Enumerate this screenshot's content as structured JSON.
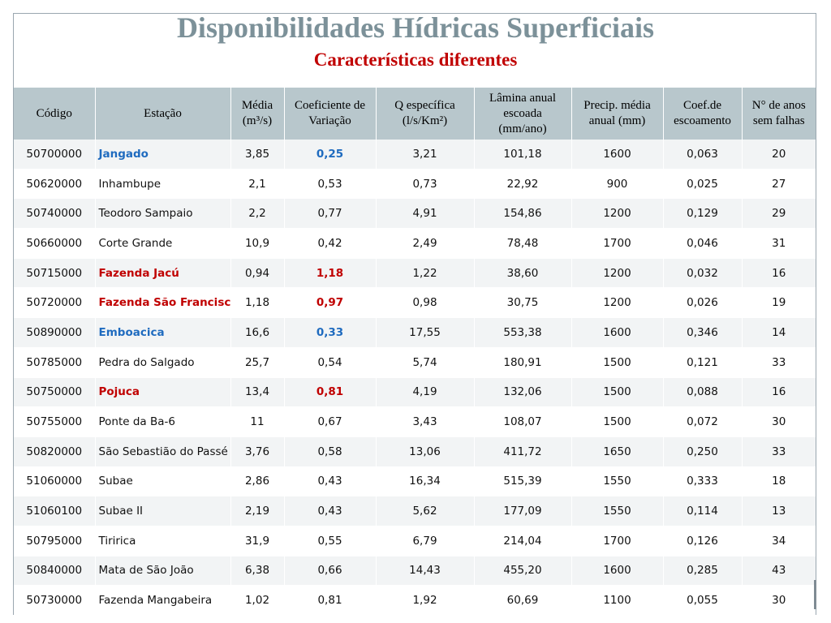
{
  "title": "Disponibilidades Hídricas Superficiais",
  "subtitle": "Características diferentes",
  "colors": {
    "title": "#7c9199",
    "subtitle": "#c00000",
    "header_bg": "#b8c7cc",
    "highlight_blue": "#1f6bbf",
    "highlight_red": "#c00000"
  },
  "headers": {
    "codigo": "Código",
    "estacao": "Estação",
    "media_l1": "Média",
    "media_l2": "(m³/s)",
    "coef_l1": "Coeficiente de",
    "coef_l2": "Variação",
    "q_l1": "Q específica",
    "q_l2": "(l/s/Km²)",
    "lamina_l1": "Lâmina anual",
    "lamina_l2": "escoada",
    "lamina_l3": "(mm/ano)",
    "precip_l1": "Precip. média",
    "precip_l2": "anual (mm)",
    "coefesc_l1": "Coef.de",
    "coefesc_l2": "escoamento",
    "anos_l1": "N° de anos",
    "anos_l2": "sem falhas"
  },
  "rows": [
    {
      "codigo": "50700000",
      "estacao": "Jangado",
      "media": "3,85",
      "cv": "0,25",
      "q": "3,21",
      "lamina": "101,18",
      "precip": "1600",
      "coef": "0,063",
      "anos": "20",
      "highlight": "blue"
    },
    {
      "codigo": "50620000",
      "estacao": "Inhambupe",
      "media": "2,1",
      "cv": "0,53",
      "q": "0,73",
      "lamina": "22,92",
      "precip": "900",
      "coef": "0,025",
      "anos": "27",
      "highlight": ""
    },
    {
      "codigo": "50740000",
      "estacao": "Teodoro Sampaio",
      "media": "2,2",
      "cv": "0,77",
      "q": "4,91",
      "lamina": "154,86",
      "precip": "1200",
      "coef": "0,129",
      "anos": "29",
      "highlight": ""
    },
    {
      "codigo": "50660000",
      "estacao": "Corte Grande",
      "media": "10,9",
      "cv": "0,42",
      "q": "2,49",
      "lamina": "78,48",
      "precip": "1700",
      "coef": "0,046",
      "anos": "31",
      "highlight": ""
    },
    {
      "codigo": "50715000",
      "estacao": "Fazenda Jacú",
      "media": "0,94",
      "cv": "1,18",
      "q": "1,22",
      "lamina": "38,60",
      "precip": "1200",
      "coef": "0,032",
      "anos": "16",
      "highlight": "red"
    },
    {
      "codigo": "50720000",
      "estacao": "Fazenda São Francisco",
      "media": "1,18",
      "cv": "0,97",
      "q": "0,98",
      "lamina": "30,75",
      "precip": "1200",
      "coef": "0,026",
      "anos": "19",
      "highlight": "red"
    },
    {
      "codigo": "50890000",
      "estacao": "Emboacica",
      "media": "16,6",
      "cv": "0,33",
      "q": "17,55",
      "lamina": "553,38",
      "precip": "1600",
      "coef": "0,346",
      "anos": "14",
      "highlight": "blue"
    },
    {
      "codigo": "50785000",
      "estacao": "Pedra do Salgado",
      "media": "25,7",
      "cv": "0,54",
      "q": "5,74",
      "lamina": "180,91",
      "precip": "1500",
      "coef": "0,121",
      "anos": "33",
      "highlight": ""
    },
    {
      "codigo": "50750000",
      "estacao": "Pojuca",
      "media": "13,4",
      "cv": "0,81",
      "q": "4,19",
      "lamina": "132,06",
      "precip": "1500",
      "coef": "0,088",
      "anos": "16",
      "highlight": "red"
    },
    {
      "codigo": "50755000",
      "estacao": "Ponte da Ba-6",
      "media": "11",
      "cv": "0,67",
      "q": "3,43",
      "lamina": "108,07",
      "precip": "1500",
      "coef": "0,072",
      "anos": "30",
      "highlight": ""
    },
    {
      "codigo": "50820000",
      "estacao": "São Sebastião do Passé",
      "media": "3,76",
      "cv": "0,58",
      "q": "13,06",
      "lamina": "411,72",
      "precip": "1650",
      "coef": "0,250",
      "anos": "33",
      "highlight": ""
    },
    {
      "codigo": "51060000",
      "estacao": "Subae",
      "media": "2,86",
      "cv": "0,43",
      "q": "16,34",
      "lamina": "515,39",
      "precip": "1550",
      "coef": "0,333",
      "anos": "18",
      "highlight": ""
    },
    {
      "codigo": "51060100",
      "estacao": "Subae II",
      "media": "2,19",
      "cv": "0,43",
      "q": "5,62",
      "lamina": "177,09",
      "precip": "1550",
      "coef": "0,114",
      "anos": "13",
      "highlight": ""
    },
    {
      "codigo": "50795000",
      "estacao": "Tiririca",
      "media": "31,9",
      "cv": "0,55",
      "q": "6,79",
      "lamina": "214,04",
      "precip": "1700",
      "coef": "0,126",
      "anos": "34",
      "highlight": ""
    },
    {
      "codigo": "50840000",
      "estacao": "Mata de São João",
      "media": "6,38",
      "cv": "0,66",
      "q": "14,43",
      "lamina": "455,20",
      "precip": "1600",
      "coef": "0,285",
      "anos": "43",
      "highlight": ""
    },
    {
      "codigo": "50730000",
      "estacao": "Fazenda Mangabeira",
      "media": "1,02",
      "cv": "0,81",
      "q": "1,92",
      "lamina": "60,69",
      "precip": "1100",
      "coef": "0,055",
      "anos": "30",
      "highlight": ""
    }
  ]
}
